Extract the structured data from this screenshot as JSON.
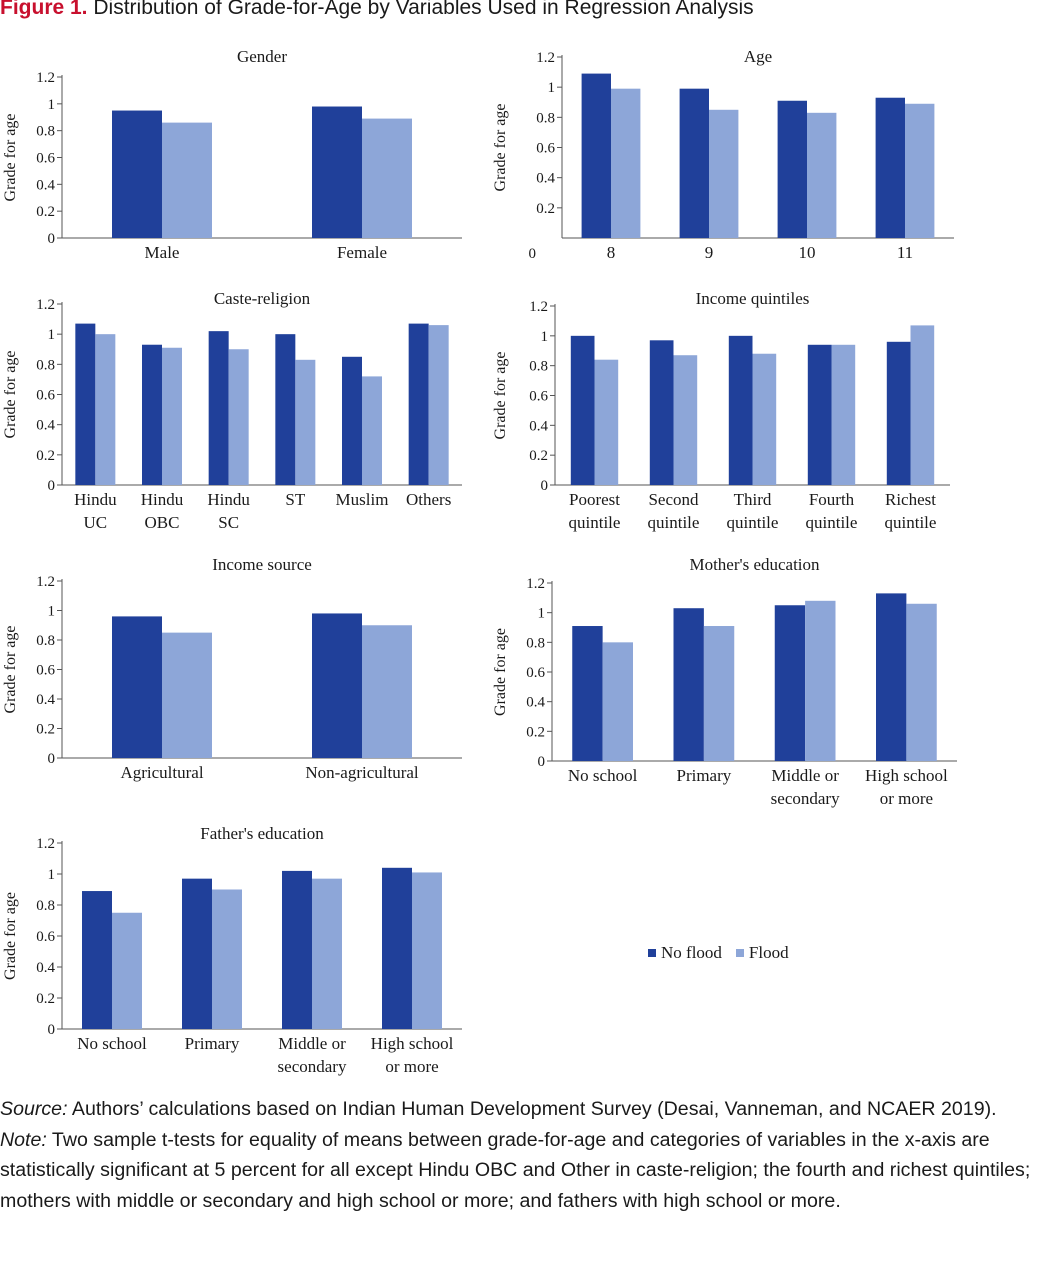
{
  "figure": {
    "label": "Figure 1.",
    "title": "Distribution of Grade-for-Age by Variables Used in Regression Analysis"
  },
  "colors": {
    "no_flood": "#20409a",
    "flood": "#8da6d8",
    "axis": "#555555"
  },
  "legend": {
    "items": [
      "No flood",
      "Flood"
    ]
  },
  "chart_data": [
    {
      "type": "bar",
      "title": "Gender",
      "ylabel": "Grade for age",
      "ylim": [
        0,
        1.2
      ],
      "yticks": [
        "0",
        "0.2",
        "0.4",
        "0.6",
        "0.8",
        "1",
        "1.2"
      ],
      "categories": [
        [
          "Male"
        ],
        [
          "Female"
        ]
      ],
      "series": [
        {
          "name": "No flood",
          "values": [
            0.95,
            0.98
          ]
        },
        {
          "name": "Flood",
          "values": [
            0.86,
            0.89
          ]
        }
      ]
    },
    {
      "type": "bar",
      "title": "Age",
      "ylabel": "Grade for age",
      "ylim": [
        0,
        1.2
      ],
      "yticks": [
        "0",
        "0.2",
        "0.4",
        "0.6",
        "0.8",
        "1",
        "1.2"
      ],
      "categories": [
        [
          "8"
        ],
        [
          "9"
        ],
        [
          "10"
        ],
        [
          "11"
        ]
      ],
      "series": [
        {
          "name": "No flood",
          "values": [
            1.09,
            0.99,
            0.91,
            0.93
          ]
        },
        {
          "name": "Flood",
          "values": [
            0.99,
            0.85,
            0.83,
            0.89
          ]
        }
      ]
    },
    {
      "type": "bar",
      "title": "Caste-religion",
      "ylabel": "Grade for age",
      "ylim": [
        0,
        1.2
      ],
      "yticks": [
        "0",
        "0.2",
        "0.4",
        "0.6",
        "0.8",
        "1",
        "1.2"
      ],
      "categories": [
        [
          "Hindu",
          "UC"
        ],
        [
          "Hindu",
          "OBC"
        ],
        [
          "Hindu",
          "SC"
        ],
        [
          "ST"
        ],
        [
          "Muslim"
        ],
        [
          "Others"
        ]
      ],
      "series": [
        {
          "name": "No flood",
          "values": [
            1.07,
            0.93,
            1.02,
            1.0,
            0.85,
            1.07
          ]
        },
        {
          "name": "Flood",
          "values": [
            1.0,
            0.91,
            0.9,
            0.83,
            0.72,
            1.06
          ]
        }
      ]
    },
    {
      "type": "bar",
      "title": "Income quintiles",
      "ylabel": "Grade for age",
      "ylim": [
        0,
        1.2
      ],
      "yticks": [
        "0",
        "0.2",
        "0.4",
        "0.6",
        "0.8",
        "1",
        "1.2"
      ],
      "categories": [
        [
          "Poorest",
          "quintile"
        ],
        [
          "Second",
          "quintile"
        ],
        [
          "Third",
          "quintile"
        ],
        [
          "Fourth",
          "quintile"
        ],
        [
          "Richest",
          "quintile"
        ]
      ],
      "series": [
        {
          "name": "No flood",
          "values": [
            1.0,
            0.97,
            1.0,
            0.94,
            0.96
          ]
        },
        {
          "name": "Flood",
          "values": [
            0.84,
            0.87,
            0.88,
            0.94,
            1.07
          ]
        }
      ]
    },
    {
      "type": "bar",
      "title": "Income source",
      "ylabel": "Grade for age",
      "ylim": [
        0,
        1.2
      ],
      "yticks": [
        "0",
        "0.2",
        "0.4",
        "0.6",
        "0.8",
        "1",
        "1.2"
      ],
      "categories": [
        [
          "Agricultural"
        ],
        [
          "Non-agricultural"
        ]
      ],
      "series": [
        {
          "name": "No flood",
          "values": [
            0.96,
            0.98
          ]
        },
        {
          "name": "Flood",
          "values": [
            0.85,
            0.9
          ]
        }
      ]
    },
    {
      "type": "bar",
      "title": "Mother's education",
      "ylabel": "Grade for age",
      "ylim": [
        0,
        1.2
      ],
      "yticks": [
        "0",
        "0.2",
        "0.4",
        "0.6",
        "0.8",
        "1",
        "1.2"
      ],
      "categories": [
        [
          "No school"
        ],
        [
          "Primary"
        ],
        [
          "Middle or",
          "secondary"
        ],
        [
          "High school",
          "or more"
        ]
      ],
      "series": [
        {
          "name": "No flood",
          "values": [
            0.91,
            1.03,
            1.05,
            1.13
          ]
        },
        {
          "name": "Flood",
          "values": [
            0.8,
            0.91,
            1.08,
            1.06
          ]
        }
      ]
    },
    {
      "type": "bar",
      "title": "Father's education",
      "ylabel": "Grade for age",
      "ylim": [
        0,
        1.2
      ],
      "yticks": [
        "0",
        "0.2",
        "0.4",
        "0.6",
        "0.8",
        "1",
        "1.2"
      ],
      "categories": [
        [
          "No school"
        ],
        [
          "Primary"
        ],
        [
          "Middle or",
          "secondary"
        ],
        [
          "High school",
          "or more"
        ]
      ],
      "series": [
        {
          "name": "No flood",
          "values": [
            0.89,
            0.97,
            1.02,
            1.04
          ]
        },
        {
          "name": "Flood",
          "values": [
            0.75,
            0.9,
            0.97,
            1.01
          ]
        }
      ]
    }
  ],
  "notes": {
    "source_label": "Source:",
    "source_text": " Authors’ calculations based on Indian Human Development Survey (Desai, Vanneman, and NCAER 2019).",
    "note_label": "Note:",
    "note_text": " Two sample t-tests for equality of means between grade-for-age and categories of variables in the x-axis are statistically significant at 5 percent for all except Hindu OBC and Other in caste-religion; the fourth and richest quintiles; mothers with middle or secondary and high school or more; and fathers with high school or more."
  }
}
